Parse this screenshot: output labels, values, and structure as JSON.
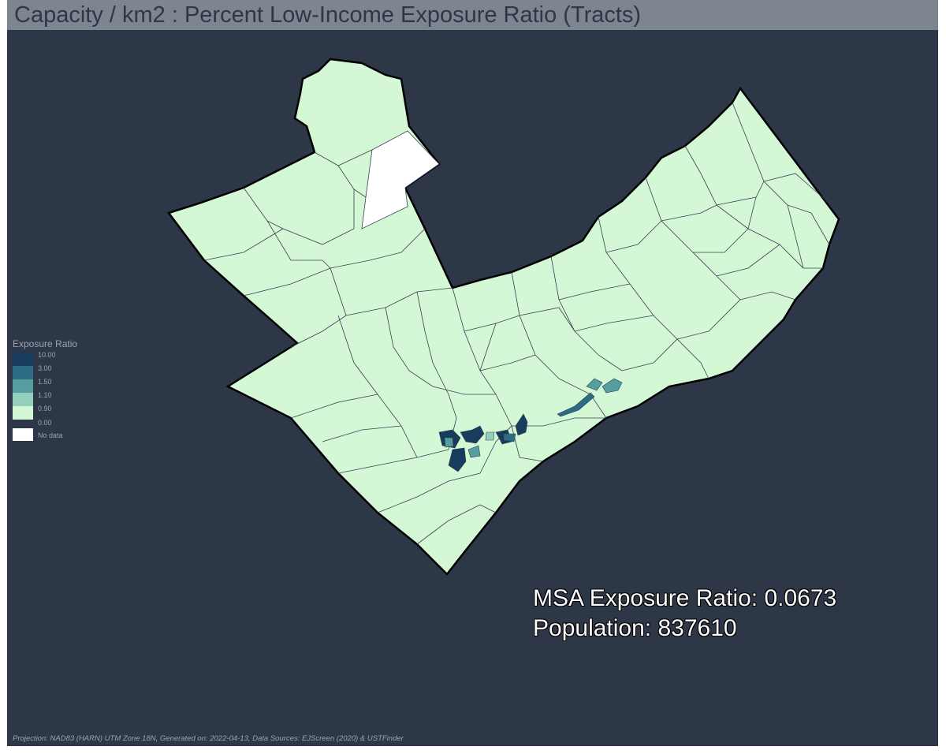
{
  "title": "Capacity / km2 : Percent Low-Income Exposure Ratio (Tracts)",
  "colors": {
    "background": "#2e3748",
    "title_bar": "#7d8590",
    "title_text": "#2e3748",
    "class_0": "#d4f8d6",
    "class_1": "#93cfbd",
    "class_2": "#559e9f",
    "class_3": "#2c6d83",
    "class_4": "#173c5c",
    "no_data": "#ffffff",
    "tract_border": "#35404f"
  },
  "legend": {
    "title": "Exposure Ratio",
    "labels": [
      "10.00",
      "3.00",
      "1.50",
      "1.10",
      "0.90",
      "0.00"
    ],
    "no_data_label": "No data"
  },
  "stats": {
    "exposure_line": "MSA Exposure Ratio: 0.0673",
    "population_line": "Population: 837610"
  },
  "footer": "Projection: NAD83 (HARN) UTM Zone 18N, Generated on: 2022-04-13, Data Sources: EJScreen (2020) & USTFinder"
}
